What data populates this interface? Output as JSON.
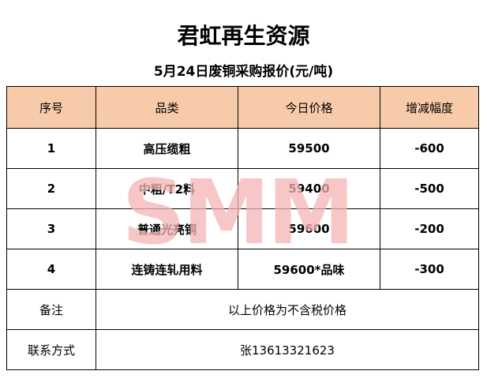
{
  "title": "君虹再生资源",
  "subtitle": "5月24日废铜采购报价(元/吨)",
  "watermark": "SMM",
  "colors": {
    "header_bg": "#f7cbaa",
    "watermark": "#f5b5b5"
  },
  "table": {
    "headers": [
      "序号",
      "品类",
      "今日价格",
      "增减幅度"
    ],
    "rows": [
      {
        "no": "1",
        "category": "高压缆粗",
        "price": "59500",
        "change": "-600"
      },
      {
        "no": "2",
        "category": "中粗/T2料",
        "price": "59400",
        "change": "-500"
      },
      {
        "no": "3",
        "category": "普通光亮铜",
        "price": "59600",
        "change": "-200"
      },
      {
        "no": "4",
        "category": "连铸连轧用料",
        "price": "59600*品味",
        "change": "-300"
      }
    ],
    "note_label": "备注",
    "note_value": "以上价格为不含税价格",
    "contact_label": "联系方式",
    "contact_value": "张13613321623"
  }
}
